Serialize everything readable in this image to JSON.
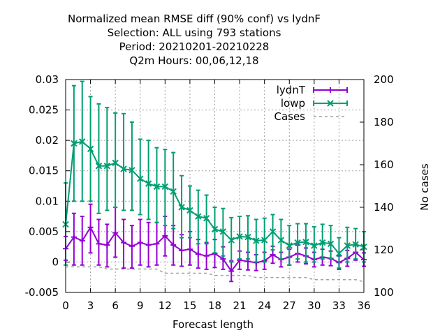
{
  "chart_data": {
    "type": "line",
    "title_lines": [
      "Normalized mean RMSE diff (90% conf) vs lydnF",
      "Selection: ALL using   793 stations",
      "Period: 20210201-20210228",
      "Q2m   Hours:  00,06,12,18"
    ],
    "xlabel": "Forecast length",
    "ylabel": "",
    "y2label": "No cases",
    "xlim": [
      0,
      36
    ],
    "ylim": [
      -0.005,
      0.03
    ],
    "y2lim": [
      100,
      200
    ],
    "x_ticks": [
      "0",
      "3",
      "6",
      "9",
      "12",
      "15",
      "18",
      "21",
      "24",
      "27",
      "30",
      "33",
      "36"
    ],
    "y_ticks": [
      "-0.005",
      "0",
      "0.005",
      "0.01",
      "0.015",
      "0.02",
      "0.025",
      "0.03"
    ],
    "y2_ticks": [
      "100",
      "120",
      "140",
      "160",
      "180",
      "200"
    ],
    "grid": true,
    "legend_position": "top-right",
    "x": [
      0,
      1,
      2,
      3,
      4,
      5,
      6,
      7,
      8,
      9,
      10,
      11,
      12,
      13,
      14,
      15,
      16,
      17,
      18,
      19,
      20,
      21,
      22,
      23,
      24,
      25,
      26,
      27,
      28,
      29,
      30,
      31,
      32,
      33,
      34,
      35,
      36
    ],
    "series": [
      {
        "name": "lydnT",
        "color": "#9400d3",
        "marker": "plus",
        "axis": "y",
        "values": [
          0.0022,
          0.0041,
          0.0035,
          0.0057,
          0.003,
          0.0028,
          0.0048,
          0.0032,
          0.0026,
          0.0032,
          0.0028,
          0.003,
          0.0043,
          0.0028,
          0.0019,
          0.0021,
          0.0013,
          0.001,
          0.0014,
          0.0005,
          -0.0015,
          0.0003,
          0.0001,
          -0.0001,
          0.0002,
          0.0012,
          0.0004,
          0.0008,
          0.0014,
          0.001,
          0.0004,
          0.0008,
          0.0006,
          -0.0001,
          0.0006,
          0.0016,
          0.0004
        ],
        "err_low": [
          0.0003,
          -0.0005,
          -0.0005,
          0.0015,
          -0.0005,
          -0.0008,
          0.0008,
          -0.001,
          -0.001,
          -0.0005,
          -0.0008,
          -0.0005,
          0.001,
          -0.0005,
          -0.0007,
          -0.0005,
          -0.001,
          -0.0012,
          -0.0009,
          -0.0012,
          -0.0032,
          -0.0012,
          -0.0013,
          -0.0014,
          -0.0012,
          -0.0002,
          -0.0008,
          -0.0005,
          0.0,
          -0.0003,
          -0.0008,
          -0.0005,
          -0.0006,
          -0.0012,
          -0.0007,
          0.0003,
          -0.0007
        ],
        "err_high": [
          0.0042,
          0.008,
          0.0075,
          0.0095,
          0.007,
          0.0062,
          0.009,
          0.007,
          0.006,
          0.007,
          0.0065,
          0.0065,
          0.0075,
          0.006,
          0.0045,
          0.005,
          0.0037,
          0.0032,
          0.0037,
          0.0025,
          0.0002,
          0.0018,
          0.0016,
          0.0012,
          0.0016,
          0.0026,
          0.0016,
          0.0021,
          0.0028,
          0.0023,
          0.0016,
          0.0021,
          0.0018,
          0.001,
          0.0019,
          0.0029,
          0.0015
        ]
      },
      {
        "name": "lowp",
        "color": "#009e73",
        "marker": "x",
        "axis": "y",
        "values": [
          0.0062,
          0.0195,
          0.0198,
          0.0186,
          0.0158,
          0.0158,
          0.0163,
          0.0153,
          0.0151,
          0.0137,
          0.0129,
          0.0124,
          0.0124,
          0.0116,
          0.009,
          0.0085,
          0.0075,
          0.0072,
          0.0054,
          0.005,
          0.0036,
          0.0042,
          0.0041,
          0.0035,
          0.0036,
          0.005,
          0.0036,
          0.0027,
          0.0032,
          0.0033,
          0.0027,
          0.0032,
          0.003,
          0.0014,
          0.0027,
          0.0029,
          0.0025
        ],
        "err_low": [
          -0.0005,
          0.01,
          0.01,
          0.01,
          0.008,
          0.0085,
          0.009,
          0.0085,
          0.0085,
          0.0078,
          0.007,
          0.0065,
          0.006,
          0.0055,
          0.004,
          0.004,
          0.003,
          0.003,
          0.0015,
          0.001,
          0.0,
          0.0005,
          0.0005,
          0.0,
          0.0,
          0.002,
          0.0005,
          -0.0005,
          0.0005,
          0.0,
          0.0,
          0.0005,
          0.0005,
          -0.001,
          0.0,
          0.0005,
          0.0
        ],
        "err_high": [
          0.013,
          0.029,
          0.0297,
          0.0272,
          0.026,
          0.0254,
          0.0245,
          0.0244,
          0.023,
          0.0202,
          0.02,
          0.0188,
          0.0185,
          0.018,
          0.0142,
          0.0125,
          0.0118,
          0.011,
          0.009,
          0.0088,
          0.0073,
          0.0075,
          0.0076,
          0.007,
          0.0072,
          0.0078,
          0.007,
          0.006,
          0.0063,
          0.0063,
          0.0058,
          0.0062,
          0.006,
          0.004,
          0.0057,
          0.0055,
          0.005
        ]
      },
      {
        "name": "Cases",
        "color": "#a0a0a0",
        "marker": "none",
        "axis": "y2",
        "dashed": true,
        "values": [
          112,
          112,
          112,
          112,
          112,
          111,
          111,
          111,
          111,
          111,
          111,
          111,
          109,
          109,
          109,
          109,
          109,
          109,
          108,
          108,
          108,
          108,
          108,
          107,
          107,
          107,
          107,
          107,
          107,
          107,
          106,
          106,
          106,
          106,
          106,
          106,
          105
        ]
      }
    ]
  }
}
